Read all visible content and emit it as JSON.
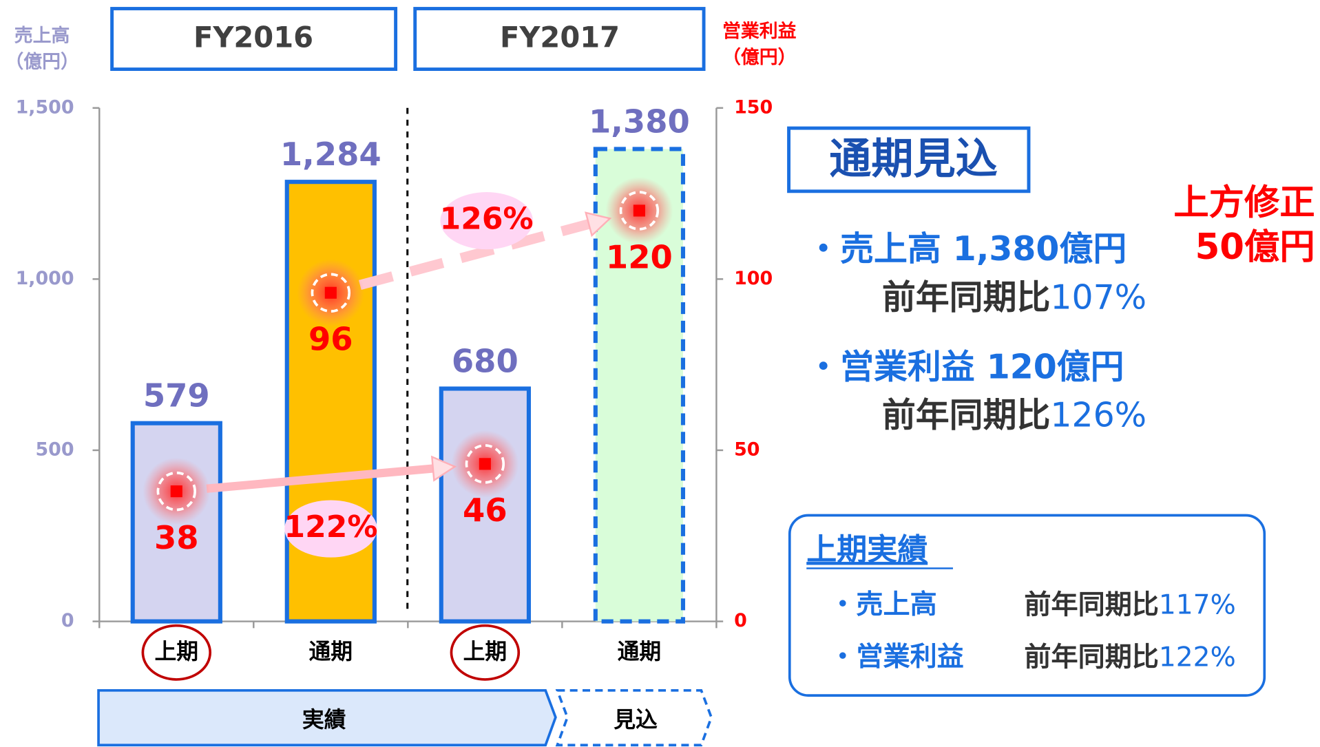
{
  "chart_data": {
    "type": "bar",
    "groups": [
      "FY2016",
      "FY2017"
    ],
    "categories": [
      "上期",
      "通期",
      "上期",
      "通期"
    ],
    "y_label": [
      "売上高",
      "（億円）"
    ],
    "y2_label": [
      "営業利益",
      "（億円）"
    ],
    "ylim": [
      0,
      1500
    ],
    "yticks": [
      0,
      500,
      {
        "value": 1000,
        "label": "1,000"
      },
      {
        "value": 1500,
        "label": "1,500"
      }
    ],
    "y2lim": [
      0,
      150
    ],
    "y2ticks": [
      0,
      50,
      100,
      150
    ],
    "series": [
      {
        "name": "売上高",
        "values": [
          579,
          1284,
          680,
          1380
        ],
        "value_labels": [
          "579",
          "1,284",
          "680",
          "1,380"
        ],
        "colors": [
          "#d4d4f0",
          "#ffc000",
          "#d4d4f0",
          "#d9fdd9"
        ],
        "border": "#1a6fe0",
        "dashed": [
          false,
          false,
          false,
          true
        ],
        "label_color": "#6f6fbf"
      },
      {
        "name": "営業利益",
        "axis": "y2",
        "values": [
          38,
          96,
          46,
          120
        ],
        "color": "#ff0000"
      }
    ],
    "growth_annotations": [
      "122%",
      "126%"
    ],
    "periods": [
      "実績",
      "見込"
    ]
  },
  "forecast_panel": {
    "title": "通期見込",
    "revision": [
      "上方修正",
      "50億円"
    ],
    "items": [
      {
        "label": "・売上高 1,380億円",
        "yoy_label": "前年同期比",
        "yoy": "107%"
      },
      {
        "label": "・営業利益 120億円",
        "yoy_label": "前年同期比",
        "yoy": "126%"
      }
    ]
  },
  "first_half_panel": {
    "title": "上期実績",
    "items": [
      {
        "label": "・売上高",
        "yoy_label": "前年同期比",
        "yoy": "117%"
      },
      {
        "label": "・営業利益",
        "yoy_label": "前年同期比",
        "yoy": "122%"
      }
    ]
  }
}
